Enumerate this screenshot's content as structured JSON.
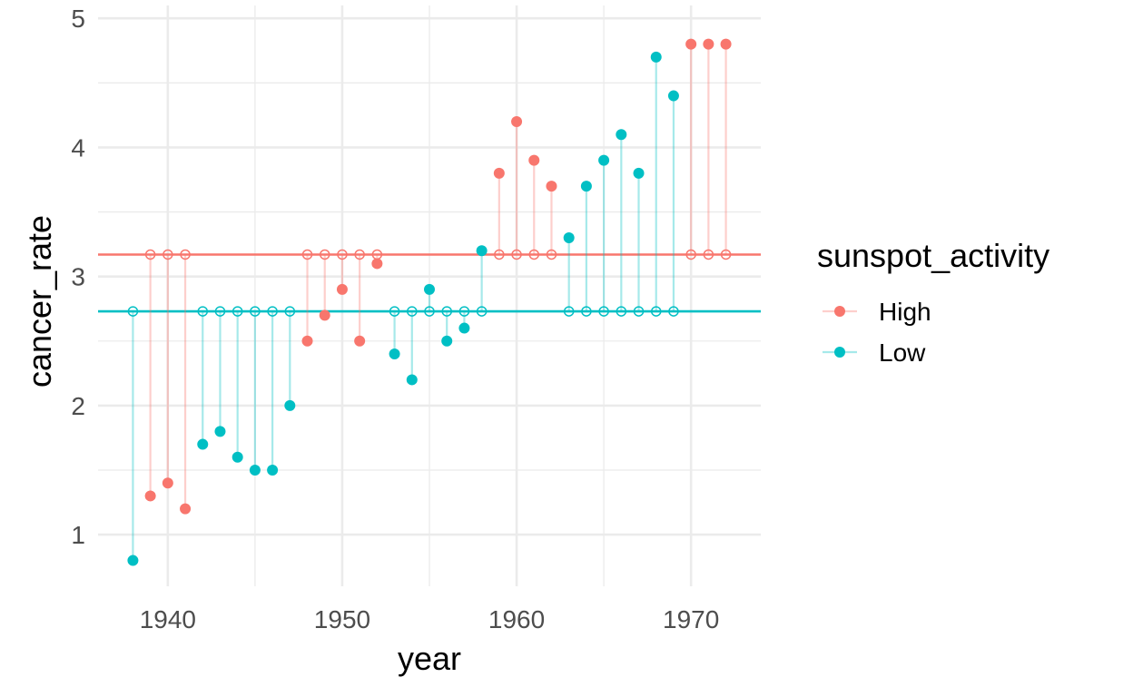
{
  "chart_data": {
    "type": "scatter",
    "subtype": "lollipop-from-group-mean",
    "xlabel": "year",
    "ylabel": "cancer_rate",
    "xlim": [
      1936,
      1974
    ],
    "ylim": [
      0.6,
      5.1
    ],
    "x_ticks": [
      1940,
      1950,
      1960,
      1970
    ],
    "y_ticks": [
      1,
      2,
      3,
      4,
      5
    ],
    "grid": true,
    "legend": {
      "title": "sunspot_activity",
      "position": "right",
      "entries": [
        "High",
        "Low"
      ]
    },
    "colors": {
      "High": "#F8766D",
      "Low": "#00BFC4"
    },
    "series": [
      {
        "name": "High",
        "mean": 3.17,
        "x": [
          1939,
          1940,
          1941,
          1948,
          1949,
          1950,
          1951,
          1952,
          1959,
          1960,
          1961,
          1962,
          1970,
          1971,
          1972
        ],
        "y": [
          1.3,
          1.4,
          1.2,
          2.5,
          2.7,
          2.9,
          2.5,
          3.1,
          3.8,
          4.2,
          3.9,
          3.7,
          4.8,
          4.8,
          4.8
        ]
      },
      {
        "name": "Low",
        "mean": 2.73,
        "x": [
          1938,
          1942,
          1943,
          1944,
          1945,
          1946,
          1947,
          1953,
          1954,
          1955,
          1956,
          1957,
          1958,
          1963,
          1964,
          1965,
          1966,
          1967,
          1968,
          1969
        ],
        "y": [
          0.8,
          1.7,
          1.8,
          1.6,
          1.5,
          1.5,
          2.0,
          2.4,
          2.2,
          2.9,
          2.5,
          2.6,
          3.2,
          3.3,
          3.7,
          3.9,
          4.1,
          3.8,
          4.7,
          4.4
        ]
      }
    ]
  }
}
